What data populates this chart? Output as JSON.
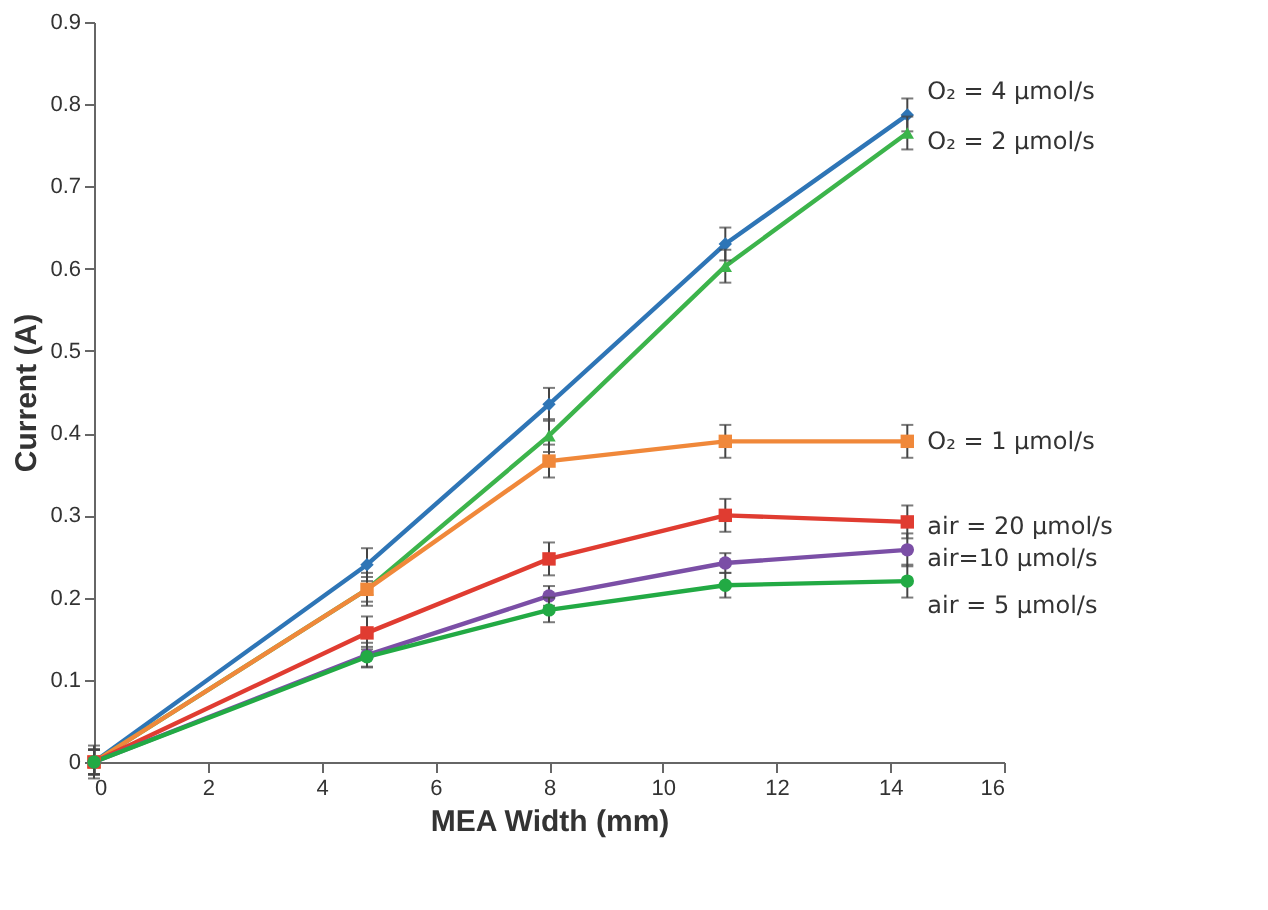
{
  "chart_data": {
    "type": "line",
    "xlabel": "MEA Width (mm)",
    "ylabel": "Current (A)",
    "x": [
      0,
      4.8,
      8,
      11.1,
      14.3
    ],
    "xlim": [
      0,
      16
    ],
    "xticks": [
      0,
      2,
      4,
      6,
      8,
      10,
      12,
      14,
      16
    ],
    "ylim": [
      0,
      0.9
    ],
    "yticks": [
      {
        "value": 0,
        "label": "0"
      },
      0.1,
      0.2,
      0.3,
      0.4,
      0.5,
      0.6,
      0.7,
      0.8,
      0.9
    ],
    "grid": false,
    "legend": false,
    "line_style": "solid",
    "series": [
      {
        "name": "O₂ = 4 µmol/s",
        "color": "#2e75b6",
        "marker": "diamond",
        "values": [
          0,
          0.24,
          0.435,
          0.63,
          0.787
        ],
        "errors": [
          0.02,
          0.02,
          0.02,
          0.02,
          0.02
        ]
      },
      {
        "name": "O₂ = 2 µmol/s",
        "color": "#3cb44b",
        "marker": "triangle",
        "values": [
          0,
          0.21,
          0.397,
          0.603,
          0.765
        ],
        "errors": [
          0.015,
          0.015,
          0.02,
          0.02,
          0.02
        ]
      },
      {
        "name": "O₂ = 1 µmol/s",
        "color": "#f0883a",
        "marker": "square",
        "values": [
          0,
          0.21,
          0.366,
          0.39,
          0.39
        ],
        "errors": [
          0.015,
          0.02,
          0.02,
          0.02,
          0.02
        ]
      },
      {
        "name": "air  = 20 µmol/s",
        "color": "#e03c31",
        "marker": "square",
        "values": [
          0,
          0.157,
          0.247,
          0.3,
          0.292
        ],
        "errors": [
          0.015,
          0.02,
          0.02,
          0.02,
          0.02
        ]
      },
      {
        "name": "air=10 µmol/s",
        "color": "#7b4fa6",
        "marker": "circle",
        "values": [
          0,
          0.13,
          0.202,
          0.242,
          0.258
        ],
        "errors": [
          0.015,
          0.015,
          0.012,
          0.012,
          0.02
        ]
      },
      {
        "name": "air  = 5 µmol/s",
        "color": "#22aa44",
        "marker": "circle",
        "values": [
          0,
          0.128,
          0.185,
          0.215,
          0.22
        ],
        "errors": [
          0.015,
          0.012,
          0.015,
          0.015,
          0.02
        ]
      }
    ]
  }
}
